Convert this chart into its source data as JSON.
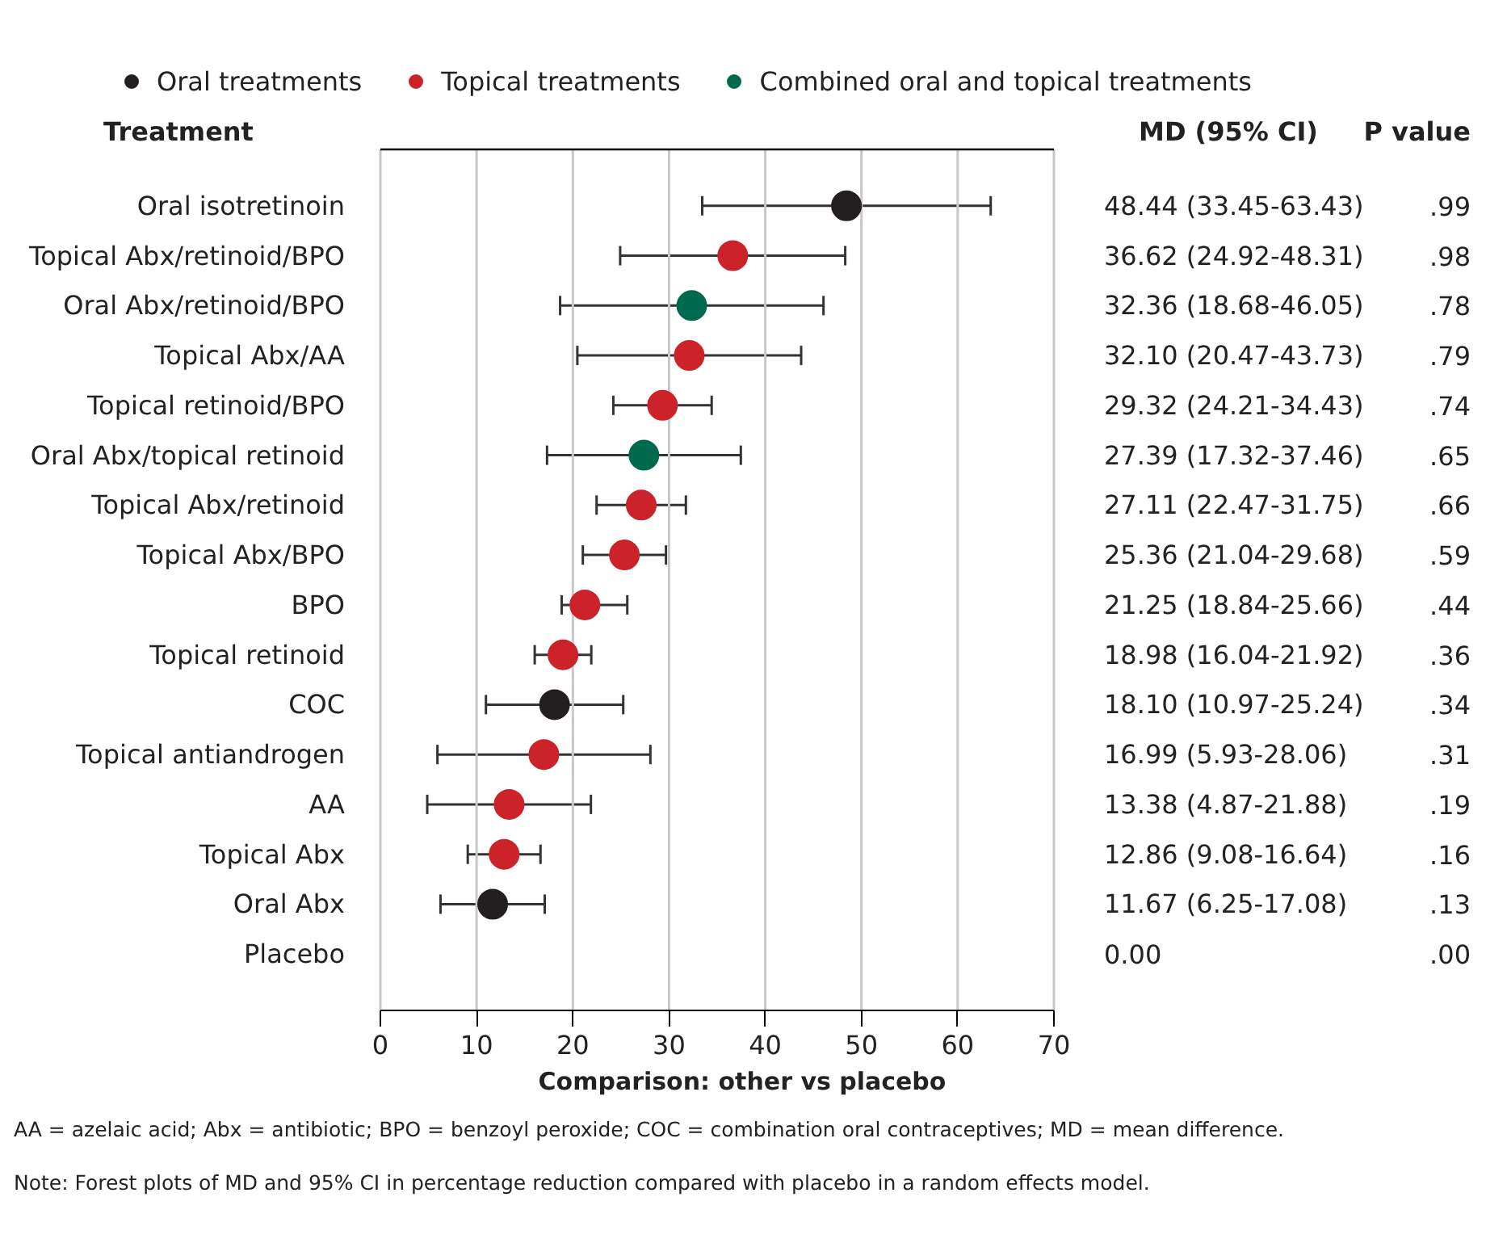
{
  "chart_data": {
    "type": "scatter",
    "orientation": "horizontal",
    "ylabel": "Treatment",
    "xlabel": "Comparison: other vs placebo",
    "categories": [
      "Oral isotretinoin",
      "Topical Abx/retinoid/BPO",
      "Oral Abx/retinoid/BPO",
      "Topical Abx/AA",
      "Topical retinoid/BPO",
      "Oral Abx/topical retinoid",
      "Topical Abx/retinoid",
      "Topical Abx/BPO",
      "BPO",
      "Topical retinoid",
      "COC",
      "Topical antiandrogen",
      "AA",
      "Topical Abx",
      "Oral Abx",
      "Placebo"
    ],
    "series": [
      {
        "name": "Oral treatments",
        "color": "#231f20",
        "values": [
          48.44,
          null,
          null,
          null,
          null,
          null,
          null,
          null,
          null,
          null,
          18.1,
          null,
          null,
          null,
          11.67,
          null
        ],
        "errors": [
          [
            33.45,
            63.43
          ],
          null,
          null,
          null,
          null,
          null,
          null,
          null,
          null,
          null,
          [
            10.97,
            25.24
          ],
          null,
          null,
          null,
          [
            6.25,
            17.08
          ],
          null
        ]
      },
      {
        "name": "Topical treatments",
        "color": "#cc2229",
        "values": [
          null,
          36.62,
          null,
          32.1,
          29.32,
          null,
          27.11,
          25.36,
          21.25,
          18.98,
          null,
          16.99,
          13.38,
          12.86,
          null,
          null
        ],
        "errors": [
          null,
          [
            24.92,
            48.31
          ],
          null,
          [
            20.47,
            43.73
          ],
          [
            24.21,
            34.43
          ],
          null,
          [
            22.47,
            31.75
          ],
          [
            21.04,
            29.68
          ],
          [
            18.84,
            25.66
          ],
          [
            16.04,
            21.92
          ],
          null,
          [
            5.93,
            28.06
          ],
          [
            4.87,
            21.88
          ],
          [
            9.08,
            16.64
          ],
          null,
          null
        ]
      },
      {
        "name": "Combined oral and topical treatments",
        "color": "#006a4e",
        "values": [
          null,
          null,
          32.36,
          null,
          null,
          27.39,
          null,
          null,
          null,
          null,
          null,
          null,
          null,
          null,
          null,
          null
        ],
        "errors": [
          null,
          null,
          [
            18.68,
            46.05
          ],
          null,
          null,
          [
            17.32,
            37.46
          ],
          null,
          null,
          null,
          null,
          null,
          null,
          null,
          null,
          null,
          null
        ]
      }
    ],
    "value_labels": [
      "48.44 (33.45-63.43)",
      "36.62 (24.92-48.31)",
      "32.36 (18.68-46.05)",
      "32.10 (20.47-43.73)",
      "29.32 (24.21-34.43)",
      "27.39 (17.32-37.46)",
      "27.11 (22.47-31.75)",
      "25.36 (21.04-29.68)",
      "21.25 (18.84-25.66)",
      "18.98 (16.04-21.92)",
      "18.10 (10.97-25.24)",
      "16.99 (5.93-28.06)",
      "13.38 (4.87-21.88)",
      "12.86 (9.08-16.64)",
      "11.67 (6.25-17.08)",
      "0.00"
    ],
    "annotations": [
      "MD (95% CI)",
      "P value",
      ".99",
      ".98",
      ".78",
      ".79",
      ".74",
      ".65",
      ".66",
      ".59",
      ".44",
      ".36",
      ".34",
      ".31",
      ".19",
      ".16",
      ".13",
      ".00",
      "AA = azelaic acid; Abx = antibiotic; BPO = benzoyl peroxide; COC = combination oral contraceptives; MD = mean difference.",
      "Note: Forest plots of MD and 95% CI in percentage reduction compared with placebo in a random effects model."
    ],
    "xlim": [
      0,
      70
    ],
    "xticks": [
      0,
      10,
      20,
      30,
      40,
      50,
      60,
      70
    ],
    "grid": "x",
    "legend": "top",
    "marker": "circle"
  }
}
